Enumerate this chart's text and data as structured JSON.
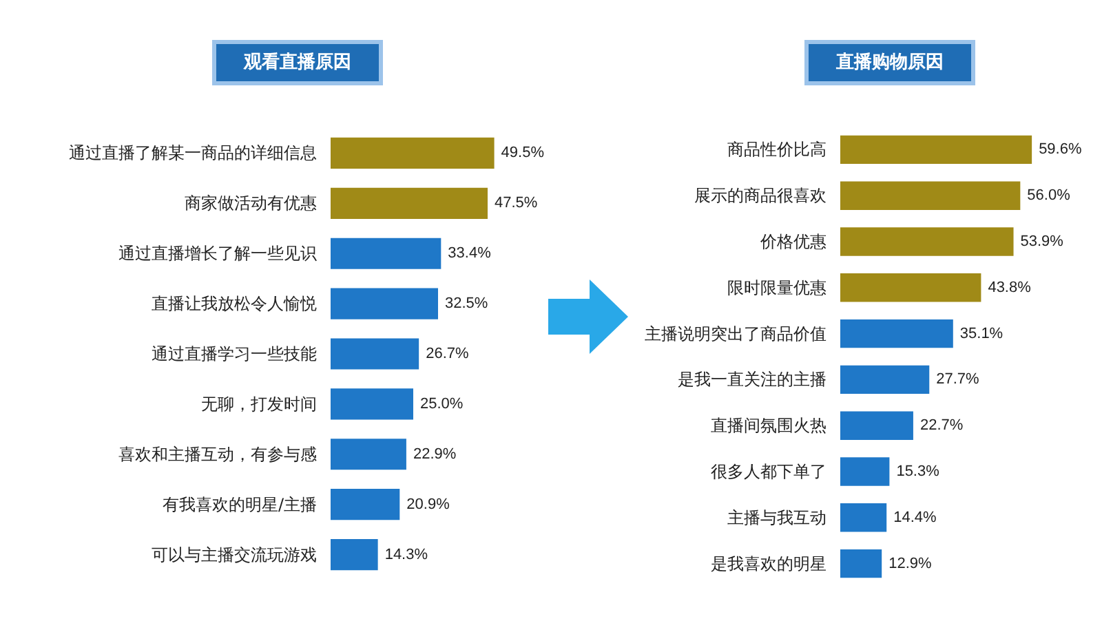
{
  "chart_data": [
    {
      "type": "bar",
      "orientation": "horizontal",
      "title": "观看直播原因",
      "categories": [
        "通过直播了解某一商品的详细信息",
        "商家做活动有优惠",
        "通过直播增长了解一些见识",
        "直播让我放松令人愉悦",
        "通过直播学习一些技能",
        "无聊，打发时间",
        "喜欢和主播互动，有参与感",
        "有我喜欢的明星/主播",
        "可以与主播交流玩游戏"
      ],
      "values": [
        49.5,
        47.5,
        33.4,
        32.5,
        26.7,
        25.0,
        22.9,
        20.9,
        14.3
      ],
      "colors": [
        "#a08a17",
        "#a08a17",
        "#1f78c8",
        "#1f78c8",
        "#1f78c8",
        "#1f78c8",
        "#1f78c8",
        "#1f78c8",
        "#1f78c8"
      ],
      "value_labels": [
        "49.5%",
        "47.5%",
        "33.4%",
        "32.5%",
        "26.7%",
        "25.0%",
        "22.9%",
        "20.9%",
        "14.3%"
      ]
    },
    {
      "type": "bar",
      "orientation": "horizontal",
      "title": "直播购物原因",
      "categories": [
        "商品性价比高",
        "展示的商品很喜欢",
        "价格优惠",
        "限时限量优惠",
        "主播说明突出了商品价值",
        "是我一直关注的主播",
        "直播间氛围火热",
        "很多人都下单了",
        "主播与我互动",
        "是我喜欢的明星"
      ],
      "values": [
        59.6,
        56.0,
        53.9,
        43.8,
        35.1,
        27.7,
        22.7,
        15.3,
        14.4,
        12.9
      ],
      "colors": [
        "#a08a17",
        "#a08a17",
        "#a08a17",
        "#a08a17",
        "#1f78c8",
        "#1f78c8",
        "#1f78c8",
        "#1f78c8",
        "#1f78c8",
        "#1f78c8"
      ],
      "value_labels": [
        "59.6%",
        "56.0%",
        "53.9%",
        "43.8%",
        "35.1%",
        "27.7%",
        "22.7%",
        "15.3%",
        "14.4%",
        "12.9%"
      ]
    }
  ]
}
